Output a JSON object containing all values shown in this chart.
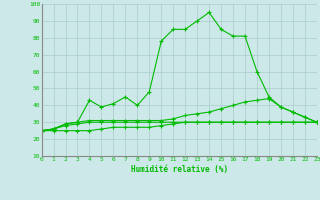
{
  "title": "",
  "xlabel": "Humidité relative (%)",
  "ylabel": "",
  "background_color": "#cce8e8",
  "grid_color": "#aacccc",
  "line_color": "#00bb00",
  "x_values": [
    0,
    1,
    2,
    3,
    4,
    5,
    6,
    7,
    8,
    9,
    10,
    11,
    12,
    13,
    14,
    15,
    16,
    17,
    18,
    19,
    20,
    21,
    22,
    23
  ],
  "series1": [
    25,
    26,
    29,
    30,
    43,
    39,
    41,
    45,
    40,
    48,
    78,
    85,
    85,
    90,
    95,
    85,
    81,
    81,
    60,
    45,
    39,
    36,
    33,
    30
  ],
  "series2": [
    25,
    26,
    29,
    30,
    31,
    31,
    31,
    31,
    31,
    31,
    31,
    32,
    34,
    35,
    36,
    38,
    40,
    42,
    43,
    44,
    39,
    36,
    33,
    30
  ],
  "series3": [
    25,
    26,
    28,
    29,
    30,
    30,
    30,
    30,
    30,
    30,
    30,
    30,
    30,
    30,
    30,
    30,
    30,
    30,
    30,
    30,
    30,
    30,
    30,
    30
  ],
  "series4": [
    25,
    25,
    25,
    25,
    25,
    26,
    27,
    27,
    27,
    27,
    28,
    29,
    30,
    30,
    30,
    30,
    30,
    30,
    30,
    30,
    30,
    30,
    30,
    30
  ],
  "ylim": [
    10,
    100
  ],
  "xlim": [
    0,
    23
  ],
  "yticks": [
    10,
    20,
    30,
    40,
    50,
    60,
    70,
    80,
    90,
    100
  ],
  "xticks": [
    0,
    1,
    2,
    3,
    4,
    5,
    6,
    7,
    8,
    9,
    10,
    11,
    12,
    13,
    14,
    15,
    16,
    17,
    18,
    19,
    20,
    21,
    22,
    23
  ]
}
